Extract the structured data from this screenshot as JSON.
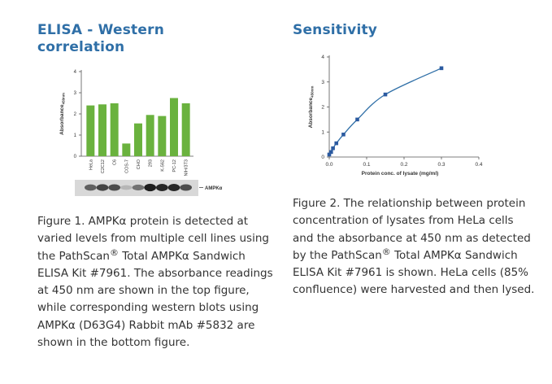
{
  "left_panel": {
    "heading": "ELISA - Western correlation",
    "caption": {
      "part1": "Figure 1. AMPKα protein is detected at varied levels from multiple cell lines using the PathScan",
      "reg": "®",
      "part2": " Total AMPKα Sandwich ELISA Kit #7961. The absorbance readings at 450 nm are shown in the top figure, while corresponding western blots using AMPKα (D63G4) Rabbit mAb #5832 are shown in the bottom figure."
    }
  },
  "right_panel": {
    "heading": "Sensitivity",
    "caption": {
      "part1": "Figure 2. The relationship between protein concentration of lysates from HeLa cells and the absorbance at 450 nm as detected by the PathScan",
      "reg": "®",
      "part2": " Total AMPKα Sandwich ELISA Kit #7961 is shown. HeLa cells (85% confluence) were harvested and then lysed."
    }
  },
  "chart_data": [
    {
      "type": "bar",
      "ylabel": "Absorbance",
      "ylabel_sub": "450nm",
      "ylim": [
        0,
        4
      ],
      "yticks": [
        "0",
        "1",
        "2",
        "3",
        "4"
      ],
      "categories": [
        "HeLa",
        "C2C12",
        "C6",
        "COS-7",
        "CHO",
        "293",
        "K-562",
        "PC-12",
        "NIH/3T3"
      ],
      "values": [
        2.4,
        2.45,
        2.5,
        0.6,
        1.55,
        1.95,
        1.9,
        2.75,
        2.5
      ],
      "bar_color": "#6ab23e",
      "blot_label": "AMPKα",
      "blot_intensity": [
        0.6,
        0.75,
        0.7,
        0.15,
        0.5,
        0.95,
        0.9,
        0.9,
        0.7
      ],
      "grid": false
    },
    {
      "type": "line",
      "xlabel": "Protein conc. of lysate (mg/ml)",
      "ylabel": "Absorbance",
      "ylabel_sub": "450nm",
      "xlim": [
        0,
        0.4
      ],
      "ylim": [
        0,
        4
      ],
      "xticks": [
        "0.0",
        "0.1",
        "0.2",
        "0.3",
        "0.4"
      ],
      "yticks": [
        "0",
        "1",
        "2",
        "3",
        "4"
      ],
      "x": [
        0.0,
        0.005,
        0.01,
        0.019,
        0.038,
        0.075,
        0.15,
        0.3
      ],
      "y": [
        0.1,
        0.2,
        0.35,
        0.55,
        0.9,
        1.5,
        2.5,
        3.55
      ],
      "line_color": "#2f6fa7",
      "marker_color": "#2b5aa0",
      "grid": false
    }
  ]
}
